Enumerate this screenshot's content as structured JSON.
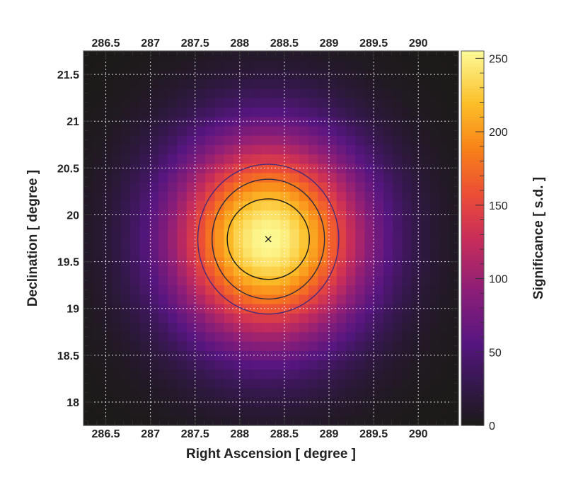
{
  "chart_data": {
    "type": "heatmap",
    "title": "",
    "xlabel": "Right Ascension [ degree ]",
    "ylabel": "Declination [ degree ]",
    "colorbar_label": "Significance [ s.d. ]",
    "xlim": [
      286.25,
      290.45
    ],
    "ylim": [
      17.75,
      21.75
    ],
    "x_ticks": [
      "286.5",
      "287",
      "287.5",
      "288",
      "288.5",
      "289",
      "289.5",
      "290"
    ],
    "x_tick_values": [
      286.5,
      287,
      287.5,
      288,
      288.5,
      289,
      289.5,
      290
    ],
    "y_ticks": [
      "18",
      "18.5",
      "19",
      "19.5",
      "20",
      "20.5",
      "21",
      "21.5"
    ],
    "y_tick_values": [
      18,
      18.5,
      19,
      19.5,
      20,
      20.5,
      21,
      21.5
    ],
    "colorbar_range": [
      0,
      255
    ],
    "colorbar_ticks": [
      "0",
      "50",
      "100",
      "150",
      "200",
      "250"
    ],
    "colorbar_tick_values": [
      0,
      50,
      100,
      150,
      200,
      250
    ],
    "colormap": "inferno",
    "grid": true,
    "source": {
      "ra": 288.32,
      "dec": 19.74,
      "peak_significance": 255,
      "sigma_ra": 0.78,
      "sigma_dec": 0.78,
      "marker": "x"
    },
    "contours": [
      {
        "ra": 288.32,
        "dec": 19.74,
        "radius_ra": 0.46,
        "radius_dec": 0.43,
        "color": "#1a1a1a"
      },
      {
        "ra": 288.32,
        "dec": 19.74,
        "radius_ra": 0.63,
        "radius_dec": 0.64,
        "color": "#2a2a40"
      },
      {
        "ra": 288.32,
        "dec": 19.74,
        "radius_ra": 0.79,
        "radius_dec": 0.8,
        "color": "#4b2a7a"
      }
    ]
  }
}
